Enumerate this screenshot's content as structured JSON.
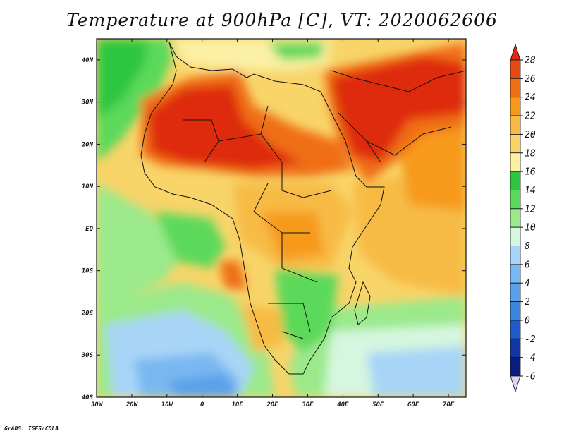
{
  "title": "Temperature at 900hPa [C], VT: 2020062606",
  "credit": "GrADS: IGES/COLA",
  "map": {
    "region": "Africa and Arabian Peninsula",
    "lon_range": [
      -30,
      75
    ],
    "lat_range": [
      -40,
      45
    ],
    "x_ticks": [
      "30W",
      "20W",
      "10W",
      "0",
      "10E",
      "20E",
      "30E",
      "40E",
      "50E",
      "60E",
      "70E"
    ],
    "y_ticks": [
      "40N",
      "30N",
      "20N",
      "10N",
      "EQ",
      "10S",
      "20S",
      "30S",
      "40S"
    ],
    "border_color": "#111111"
  },
  "colorbar": {
    "labels": [
      "28",
      "26",
      "24",
      "22",
      "20",
      "18",
      "16",
      "14",
      "12",
      "10",
      "8",
      "6",
      "4",
      "2",
      "0",
      "-2",
      "-4",
      "-6"
    ],
    "colors": [
      "#de2b0f",
      "#e64a10",
      "#f06e14",
      "#f79a1c",
      "#f7bb45",
      "#f8d469",
      "#fbf0a4",
      "#2ec640",
      "#5cd95a",
      "#9be98b",
      "#d5f7df",
      "#a8d5f7",
      "#79b7f1",
      "#5aa1ea",
      "#3b85dd",
      "#1e5cca",
      "#1137a5",
      "#0a1e7e"
    ],
    "top_color": "#de2b0f",
    "bottom_color": "#dcd2f5"
  },
  "chart_data": {
    "type": "heatmap",
    "title": "Temperature at 900hPa [C], VT: 2020062606",
    "xlabel": "",
    "ylabel": "",
    "x_ticks": [
      "30W",
      "20W",
      "10W",
      "0",
      "10E",
      "20E",
      "30E",
      "40E",
      "50E",
      "60E",
      "70E"
    ],
    "y_ticks": [
      "40N",
      "30N",
      "20N",
      "10N",
      "EQ",
      "10S",
      "20S",
      "30S",
      "40S"
    ],
    "colorbar_levels": [
      28,
      26,
      24,
      22,
      20,
      18,
      16,
      14,
      12,
      10,
      8,
      6,
      4,
      2,
      0,
      -2,
      -4,
      -6
    ]
  }
}
